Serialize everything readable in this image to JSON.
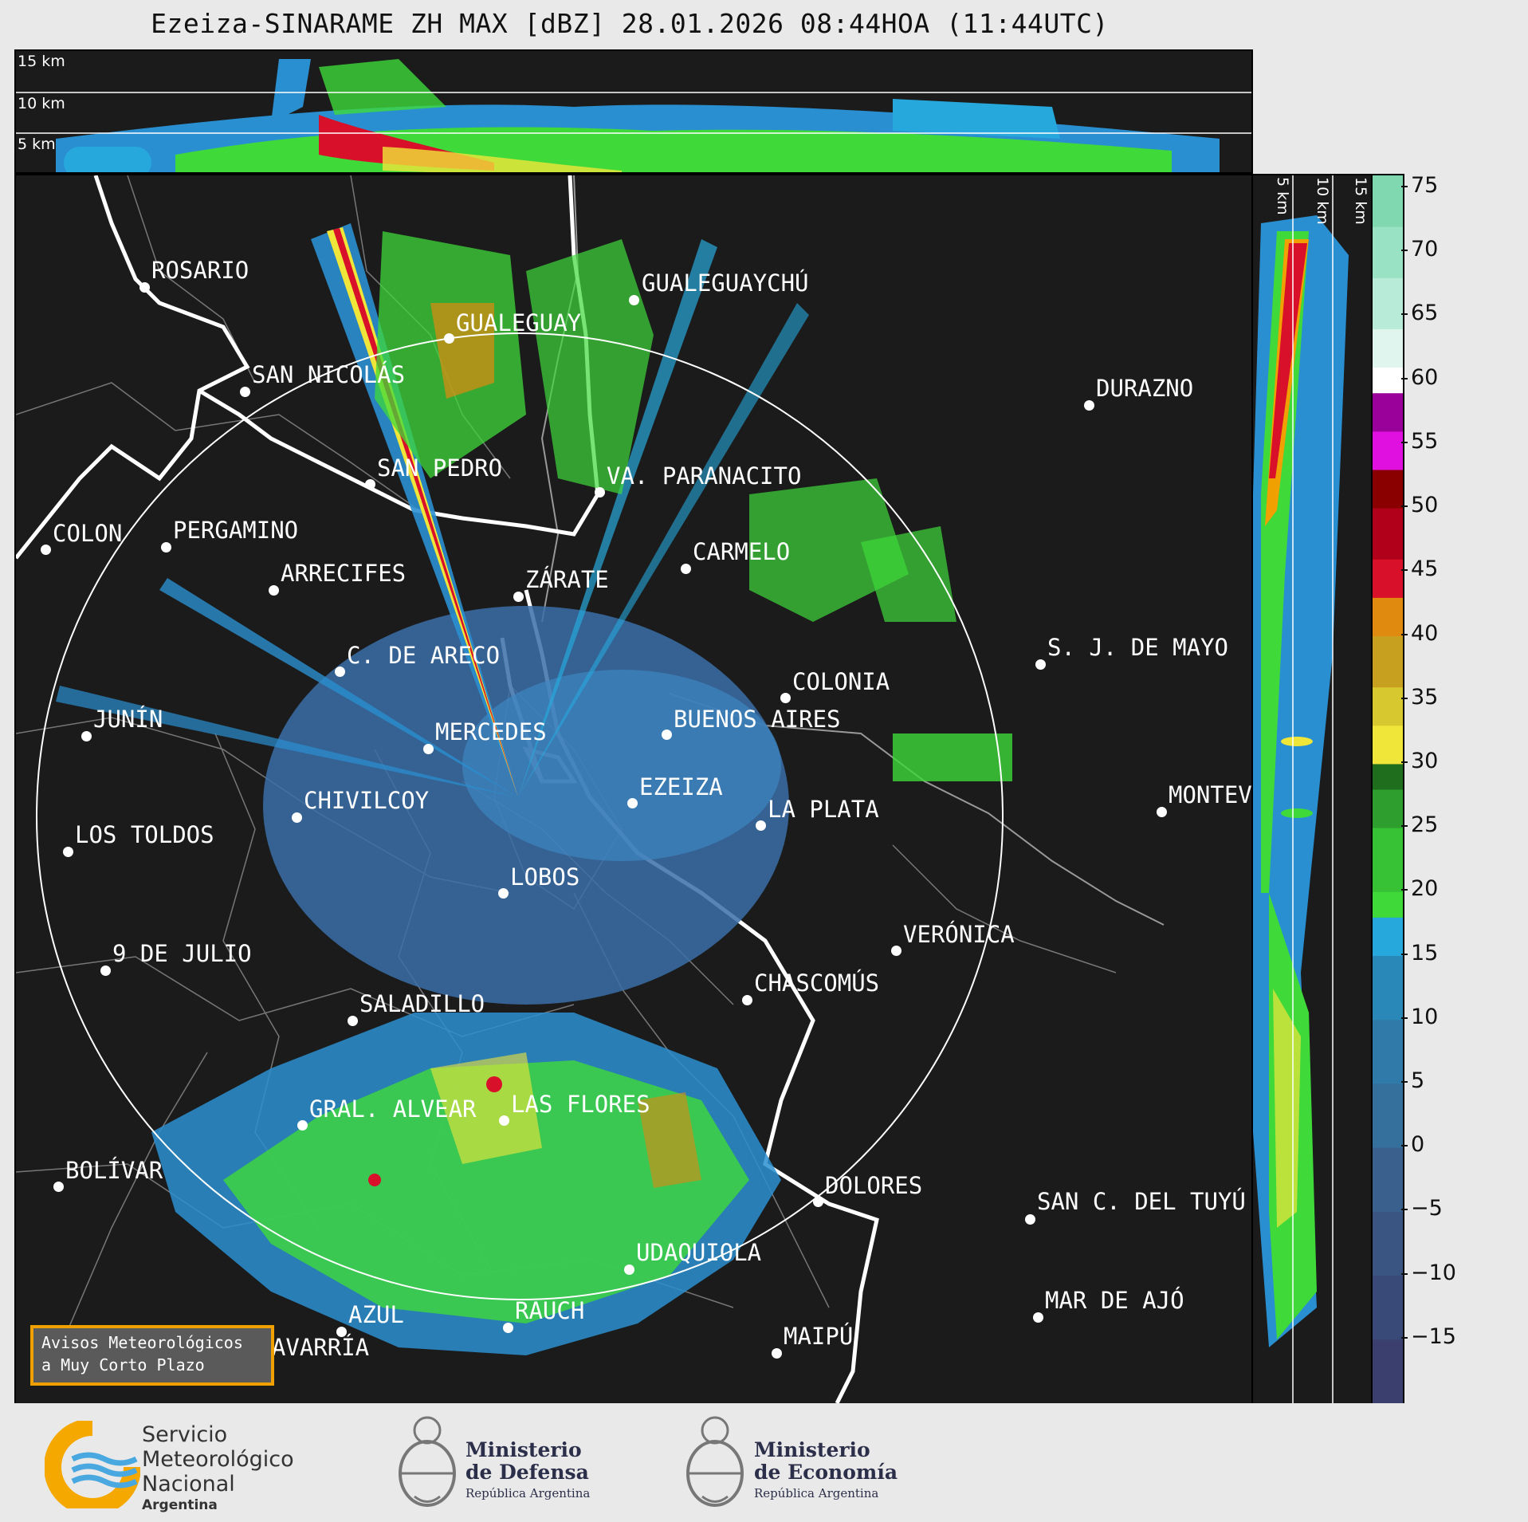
{
  "title": "Ezeiza-SINARAME ZH MAX [dBZ] 28.01.2026 08:44HOA (11:44UTC)",
  "top_panel": {
    "height_labels": [
      "15 km",
      "10 km",
      "5 km"
    ]
  },
  "side_panel": {
    "height_labels": [
      "5 km",
      "10 km",
      "15 km"
    ]
  },
  "colorbar": {
    "unit": "dBZ",
    "ticks": [
      "75",
      "70",
      "65",
      "60",
      "55",
      "50",
      "45",
      "40",
      "35",
      "30",
      "25",
      "20",
      "15",
      "10",
      "5",
      "0",
      "−5",
      "−10",
      "−15"
    ],
    "min": -20,
    "max": 76,
    "colors": {
      "purple_low": "#3a3f6e",
      "blue": "#2f6fa8",
      "cyan": "#26a8dc",
      "green": "#3fd93a",
      "dark_green": "#1e6e1e",
      "yellow": "#f0e63a",
      "orange": "#e08a10",
      "red": "#d8102a",
      "dark_red": "#8a0000",
      "magenta": "#e010e0",
      "white": "#ffffff",
      "mint": "#7fd8b0"
    }
  },
  "cities": [
    {
      "name": "ROSARIO"
    },
    {
      "name": "GUALEGUAYCHÚ"
    },
    {
      "name": "GUALEGUAY"
    },
    {
      "name": "SAN NICOLÁS"
    },
    {
      "name": "DURAZNO"
    },
    {
      "name": "SAN PEDRO"
    },
    {
      "name": "VA. PARANACITO"
    },
    {
      "name": "COLON"
    },
    {
      "name": "PERGAMINO"
    },
    {
      "name": "CARMELO"
    },
    {
      "name": "ARRECIFES"
    },
    {
      "name": "ZÁRATE"
    },
    {
      "name": "S. J. DE MAYO"
    },
    {
      "name": "C. DE ARECO"
    },
    {
      "name": "COLONIA"
    },
    {
      "name": "JUNÍN"
    },
    {
      "name": "MERCEDES"
    },
    {
      "name": "BUENOS AIRES"
    },
    {
      "name": "MONTEV"
    },
    {
      "name": "CHIVILCOY"
    },
    {
      "name": "EZEIZA"
    },
    {
      "name": "LA PLATA"
    },
    {
      "name": "LOS TOLDOS"
    },
    {
      "name": "LOBOS"
    },
    {
      "name": "VERÓNICA"
    },
    {
      "name": "9 DE JULIO"
    },
    {
      "name": "CHASCOMÚS"
    },
    {
      "name": "SALADILLO"
    },
    {
      "name": "GRAL. ALVEAR"
    },
    {
      "name": "LAS FLORES"
    },
    {
      "name": "BOLÍVAR"
    },
    {
      "name": "DOLORES"
    },
    {
      "name": "SAN C. DEL TUYÚ"
    },
    {
      "name": "UDAQUIOLA"
    },
    {
      "name": "MAR DE AJÓ"
    },
    {
      "name": "AZUL"
    },
    {
      "name": "RAUCH"
    },
    {
      "name": "MAIPÚ"
    },
    {
      "name": "OLAVARRÍA"
    }
  ],
  "avisos": {
    "line1": "Avisos Meteorológicos",
    "line2": "a Muy Corto Plazo"
  },
  "footer": {
    "smn": {
      "line1": "Servicio",
      "line2": "Meteorológico",
      "line3": "Nacional",
      "line4": "Argentina"
    },
    "defensa": {
      "line1": "Ministerio",
      "line2": "de Defensa",
      "line3": "República Argentina"
    },
    "economia": {
      "line1": "Ministerio",
      "line2": "de Economía",
      "line3": "República Argentina"
    }
  }
}
